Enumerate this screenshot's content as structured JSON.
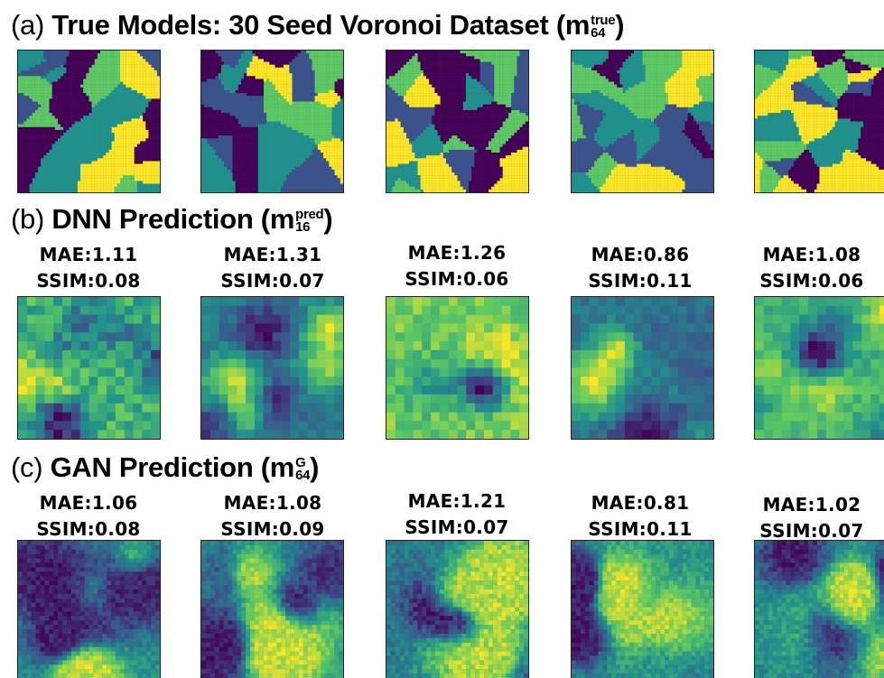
{
  "sections": [
    {
      "tag": "(a)",
      "title": "True Models: 30 Seed Voronoi Dataset (",
      "symbol": "m",
      "sup": "true",
      "sub": "64",
      "close": ")"
    },
    {
      "tag": "(b)",
      "title": "DNN Prediction (",
      "symbol": "m",
      "sup": "pred",
      "sub": "16",
      "close": ")"
    },
    {
      "tag": "(c)",
      "title": "GAN Prediction (",
      "symbol": "m",
      "sup": "G",
      "sub": "64",
      "close": ")"
    }
  ],
  "dnn_metrics": [
    {
      "mae": "MAE:1.11",
      "ssim": "SSIM:0.08"
    },
    {
      "mae": "MAE:1.31",
      "ssim": "SSIM:0.07"
    },
    {
      "mae": "MAE:1.26",
      "ssim": "SSIM:0.06"
    },
    {
      "mae": "MAE:0.86",
      "ssim": "SSIM:0.11"
    },
    {
      "mae": "MAE:1.08",
      "ssim": "SSIM:0.06"
    }
  ],
  "gan_metrics": [
    {
      "mae": "MAE:1.06",
      "ssim": "SSIM:0.08"
    },
    {
      "mae": "MAE:1.08",
      "ssim": "SSIM:0.09"
    },
    {
      "mae": "MAE:1.21",
      "ssim": "SSIM:0.07"
    },
    {
      "mae": "MAE:0.81",
      "ssim": "SSIM:0.11"
    },
    {
      "mae": "MAE:1.02",
      "ssim": "SSIM:0.07"
    }
  ],
  "colormap": [
    "#440154",
    "#3b528b",
    "#21918c",
    "#5ec962",
    "#fde725"
  ]
}
